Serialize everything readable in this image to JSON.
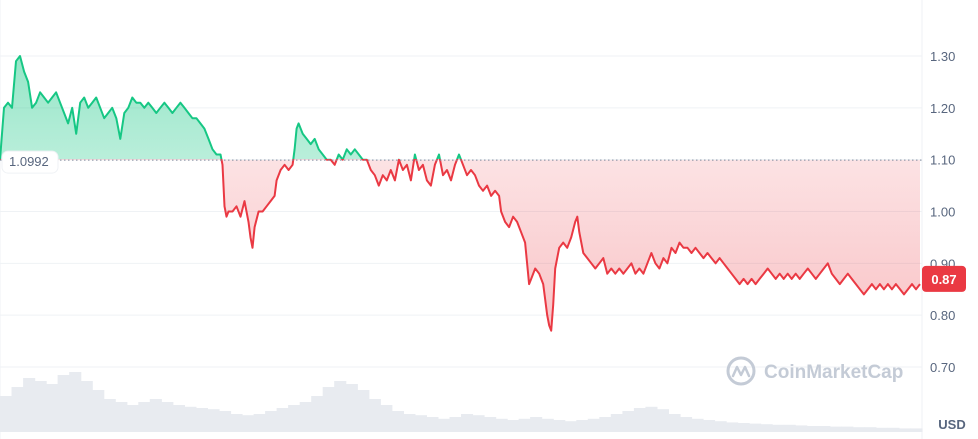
{
  "chart_data": {
    "type": "area",
    "unit": "USD",
    "baseline": {
      "value": 1.0992,
      "label": "1.0992"
    },
    "current_price": {
      "value": 0.87,
      "label": "0.87"
    },
    "ylim": [
      0.65,
      1.37
    ],
    "yticks": [
      {
        "value": 1.3,
        "label": "1.30"
      },
      {
        "value": 1.2,
        "label": "1.20"
      },
      {
        "value": 1.1,
        "label": "1.10"
      },
      {
        "value": 1.0,
        "label": "1.00"
      },
      {
        "value": 0.9,
        "label": "0.90"
      },
      {
        "value": 0.8,
        "label": "0.80"
      },
      {
        "value": 0.7,
        "label": "0.70"
      }
    ],
    "grid": true,
    "colors": {
      "above": "#16c784",
      "below": "#ea3943",
      "axis_text": "#58667e",
      "grid": "#eff2f5",
      "volume": "#e8ebf0"
    },
    "x_count": 920,
    "price_points": [
      [
        0,
        1.1
      ],
      [
        4,
        1.2
      ],
      [
        8,
        1.21
      ],
      [
        12,
        1.2
      ],
      [
        16,
        1.29
      ],
      [
        20,
        1.3
      ],
      [
        24,
        1.27
      ],
      [
        28,
        1.25
      ],
      [
        32,
        1.2
      ],
      [
        36,
        1.21
      ],
      [
        40,
        1.23
      ],
      [
        44,
        1.22
      ],
      [
        48,
        1.21
      ],
      [
        52,
        1.22
      ],
      [
        56,
        1.23
      ],
      [
        60,
        1.21
      ],
      [
        64,
        1.19
      ],
      [
        68,
        1.17
      ],
      [
        72,
        1.2
      ],
      [
        76,
        1.15
      ],
      [
        80,
        1.21
      ],
      [
        84,
        1.22
      ],
      [
        88,
        1.2
      ],
      [
        92,
        1.21
      ],
      [
        96,
        1.22
      ],
      [
        100,
        1.2
      ],
      [
        104,
        1.18
      ],
      [
        108,
        1.19
      ],
      [
        112,
        1.2
      ],
      [
        116,
        1.18
      ],
      [
        120,
        1.14
      ],
      [
        124,
        1.19
      ],
      [
        128,
        1.2
      ],
      [
        132,
        1.22
      ],
      [
        136,
        1.21
      ],
      [
        140,
        1.21
      ],
      [
        144,
        1.2
      ],
      [
        148,
        1.21
      ],
      [
        152,
        1.2
      ],
      [
        156,
        1.19
      ],
      [
        160,
        1.2
      ],
      [
        164,
        1.21
      ],
      [
        168,
        1.2
      ],
      [
        172,
        1.19
      ],
      [
        176,
        1.2
      ],
      [
        180,
        1.21
      ],
      [
        184,
        1.2
      ],
      [
        188,
        1.19
      ],
      [
        192,
        1.18
      ],
      [
        196,
        1.18
      ],
      [
        200,
        1.17
      ],
      [
        204,
        1.16
      ],
      [
        208,
        1.14
      ],
      [
        212,
        1.12
      ],
      [
        216,
        1.11
      ],
      [
        220,
        1.11
      ],
      [
        222,
        1.09
      ],
      [
        224,
        1.01
      ],
      [
        226,
        0.99
      ],
      [
        228,
        1.0
      ],
      [
        232,
        1.0
      ],
      [
        236,
        1.01
      ],
      [
        240,
        0.99
      ],
      [
        244,
        1.02
      ],
      [
        248,
        0.98
      ],
      [
        250,
        0.95
      ],
      [
        252,
        0.93
      ],
      [
        254,
        0.97
      ],
      [
        258,
        1.0
      ],
      [
        262,
        1.0
      ],
      [
        266,
        1.01
      ],
      [
        270,
        1.02
      ],
      [
        274,
        1.03
      ],
      [
        276,
        1.06
      ],
      [
        280,
        1.08
      ],
      [
        284,
        1.09
      ],
      [
        288,
        1.08
      ],
      [
        292,
        1.09
      ],
      [
        294,
        1.12
      ],
      [
        296,
        1.16
      ],
      [
        298,
        1.17
      ],
      [
        302,
        1.15
      ],
      [
        306,
        1.14
      ],
      [
        310,
        1.13
      ],
      [
        314,
        1.14
      ],
      [
        318,
        1.12
      ],
      [
        322,
        1.11
      ],
      [
        326,
        1.1
      ],
      [
        330,
        1.1
      ],
      [
        334,
        1.09
      ],
      [
        338,
        1.11
      ],
      [
        342,
        1.1
      ],
      [
        346,
        1.12
      ],
      [
        350,
        1.11
      ],
      [
        354,
        1.12
      ],
      [
        358,
        1.11
      ],
      [
        362,
        1.1
      ],
      [
        366,
        1.1
      ],
      [
        370,
        1.08
      ],
      [
        374,
        1.07
      ],
      [
        378,
        1.05
      ],
      [
        382,
        1.07
      ],
      [
        386,
        1.06
      ],
      [
        390,
        1.08
      ],
      [
        394,
        1.06
      ],
      [
        398,
        1.1
      ],
      [
        402,
        1.08
      ],
      [
        406,
        1.09
      ],
      [
        410,
        1.06
      ],
      [
        414,
        1.11
      ],
      [
        418,
        1.08
      ],
      [
        422,
        1.09
      ],
      [
        426,
        1.06
      ],
      [
        430,
        1.05
      ],
      [
        434,
        1.09
      ],
      [
        438,
        1.11
      ],
      [
        442,
        1.07
      ],
      [
        446,
        1.08
      ],
      [
        450,
        1.06
      ],
      [
        454,
        1.09
      ],
      [
        458,
        1.11
      ],
      [
        462,
        1.09
      ],
      [
        466,
        1.07
      ],
      [
        470,
        1.08
      ],
      [
        474,
        1.07
      ],
      [
        478,
        1.05
      ],
      [
        482,
        1.04
      ],
      [
        486,
        1.05
      ],
      [
        490,
        1.03
      ],
      [
        494,
        1.04
      ],
      [
        498,
        1.03
      ],
      [
        500,
        1.0
      ],
      [
        504,
        0.98
      ],
      [
        508,
        0.97
      ],
      [
        512,
        0.99
      ],
      [
        516,
        0.98
      ],
      [
        520,
        0.96
      ],
      [
        524,
        0.94
      ],
      [
        526,
        0.9
      ],
      [
        528,
        0.86
      ],
      [
        530,
        0.87
      ],
      [
        534,
        0.89
      ],
      [
        538,
        0.88
      ],
      [
        542,
        0.86
      ],
      [
        544,
        0.83
      ],
      [
        546,
        0.8
      ],
      [
        548,
        0.78
      ],
      [
        550,
        0.77
      ],
      [
        552,
        0.82
      ],
      [
        554,
        0.89
      ],
      [
        558,
        0.93
      ],
      [
        562,
        0.94
      ],
      [
        566,
        0.93
      ],
      [
        570,
        0.95
      ],
      [
        574,
        0.98
      ],
      [
        576,
        0.99
      ],
      [
        578,
        0.96
      ],
      [
        582,
        0.92
      ],
      [
        586,
        0.91
      ],
      [
        590,
        0.9
      ],
      [
        594,
        0.89
      ],
      [
        598,
        0.9
      ],
      [
        602,
        0.91
      ],
      [
        606,
        0.88
      ],
      [
        610,
        0.89
      ],
      [
        614,
        0.88
      ],
      [
        618,
        0.89
      ],
      [
        622,
        0.88
      ],
      [
        626,
        0.89
      ],
      [
        630,
        0.9
      ],
      [
        634,
        0.88
      ],
      [
        638,
        0.89
      ],
      [
        642,
        0.88
      ],
      [
        646,
        0.9
      ],
      [
        650,
        0.92
      ],
      [
        654,
        0.9
      ],
      [
        658,
        0.89
      ],
      [
        662,
        0.91
      ],
      [
        666,
        0.9
      ],
      [
        670,
        0.93
      ],
      [
        674,
        0.92
      ],
      [
        678,
        0.94
      ],
      [
        682,
        0.93
      ],
      [
        686,
        0.93
      ],
      [
        690,
        0.92
      ],
      [
        694,
        0.93
      ],
      [
        698,
        0.92
      ],
      [
        702,
        0.91
      ],
      [
        706,
        0.92
      ],
      [
        710,
        0.91
      ],
      [
        714,
        0.9
      ],
      [
        718,
        0.91
      ],
      [
        722,
        0.9
      ],
      [
        726,
        0.89
      ],
      [
        730,
        0.88
      ],
      [
        734,
        0.87
      ],
      [
        738,
        0.86
      ],
      [
        742,
        0.87
      ],
      [
        746,
        0.86
      ],
      [
        750,
        0.87
      ],
      [
        754,
        0.86
      ],
      [
        758,
        0.87
      ],
      [
        762,
        0.88
      ],
      [
        766,
        0.89
      ],
      [
        770,
        0.88
      ],
      [
        774,
        0.87
      ],
      [
        778,
        0.88
      ],
      [
        782,
        0.87
      ],
      [
        786,
        0.88
      ],
      [
        790,
        0.87
      ],
      [
        794,
        0.88
      ],
      [
        798,
        0.87
      ],
      [
        802,
        0.88
      ],
      [
        806,
        0.89
      ],
      [
        810,
        0.88
      ],
      [
        814,
        0.87
      ],
      [
        818,
        0.88
      ],
      [
        822,
        0.89
      ],
      [
        826,
        0.9
      ],
      [
        830,
        0.88
      ],
      [
        834,
        0.87
      ],
      [
        838,
        0.86
      ],
      [
        842,
        0.87
      ],
      [
        846,
        0.88
      ],
      [
        850,
        0.87
      ],
      [
        854,
        0.86
      ],
      [
        858,
        0.85
      ],
      [
        862,
        0.84
      ],
      [
        866,
        0.85
      ],
      [
        870,
        0.86
      ],
      [
        874,
        0.85
      ],
      [
        878,
        0.86
      ],
      [
        882,
        0.85
      ],
      [
        886,
        0.86
      ],
      [
        890,
        0.85
      ],
      [
        894,
        0.86
      ],
      [
        898,
        0.85
      ],
      [
        902,
        0.84
      ],
      [
        906,
        0.85
      ],
      [
        910,
        0.86
      ],
      [
        914,
        0.85
      ],
      [
        918,
        0.86
      ]
    ],
    "volume_levels": [
      0.6,
      0.75,
      0.9,
      0.85,
      0.8,
      0.95,
      1.0,
      0.85,
      0.7,
      0.55,
      0.5,
      0.45,
      0.5,
      0.55,
      0.5,
      0.45,
      0.42,
      0.4,
      0.38,
      0.35,
      0.3,
      0.28,
      0.3,
      0.35,
      0.4,
      0.45,
      0.5,
      0.6,
      0.75,
      0.85,
      0.8,
      0.7,
      0.55,
      0.45,
      0.35,
      0.3,
      0.28,
      0.25,
      0.22,
      0.25,
      0.3,
      0.28,
      0.25,
      0.22,
      0.2,
      0.22,
      0.25,
      0.22,
      0.2,
      0.18,
      0.2,
      0.22,
      0.25,
      0.3,
      0.35,
      0.4,
      0.42,
      0.38,
      0.3,
      0.25,
      0.22,
      0.2,
      0.18,
      0.16,
      0.15,
      0.14,
      0.13,
      0.12,
      0.12,
      0.11,
      0.1,
      0.1,
      0.09,
      0.09,
      0.08,
      0.08,
      0.07,
      0.07,
      0.06,
      0.06
    ]
  },
  "watermark": {
    "text": "CoinMarketCap"
  }
}
